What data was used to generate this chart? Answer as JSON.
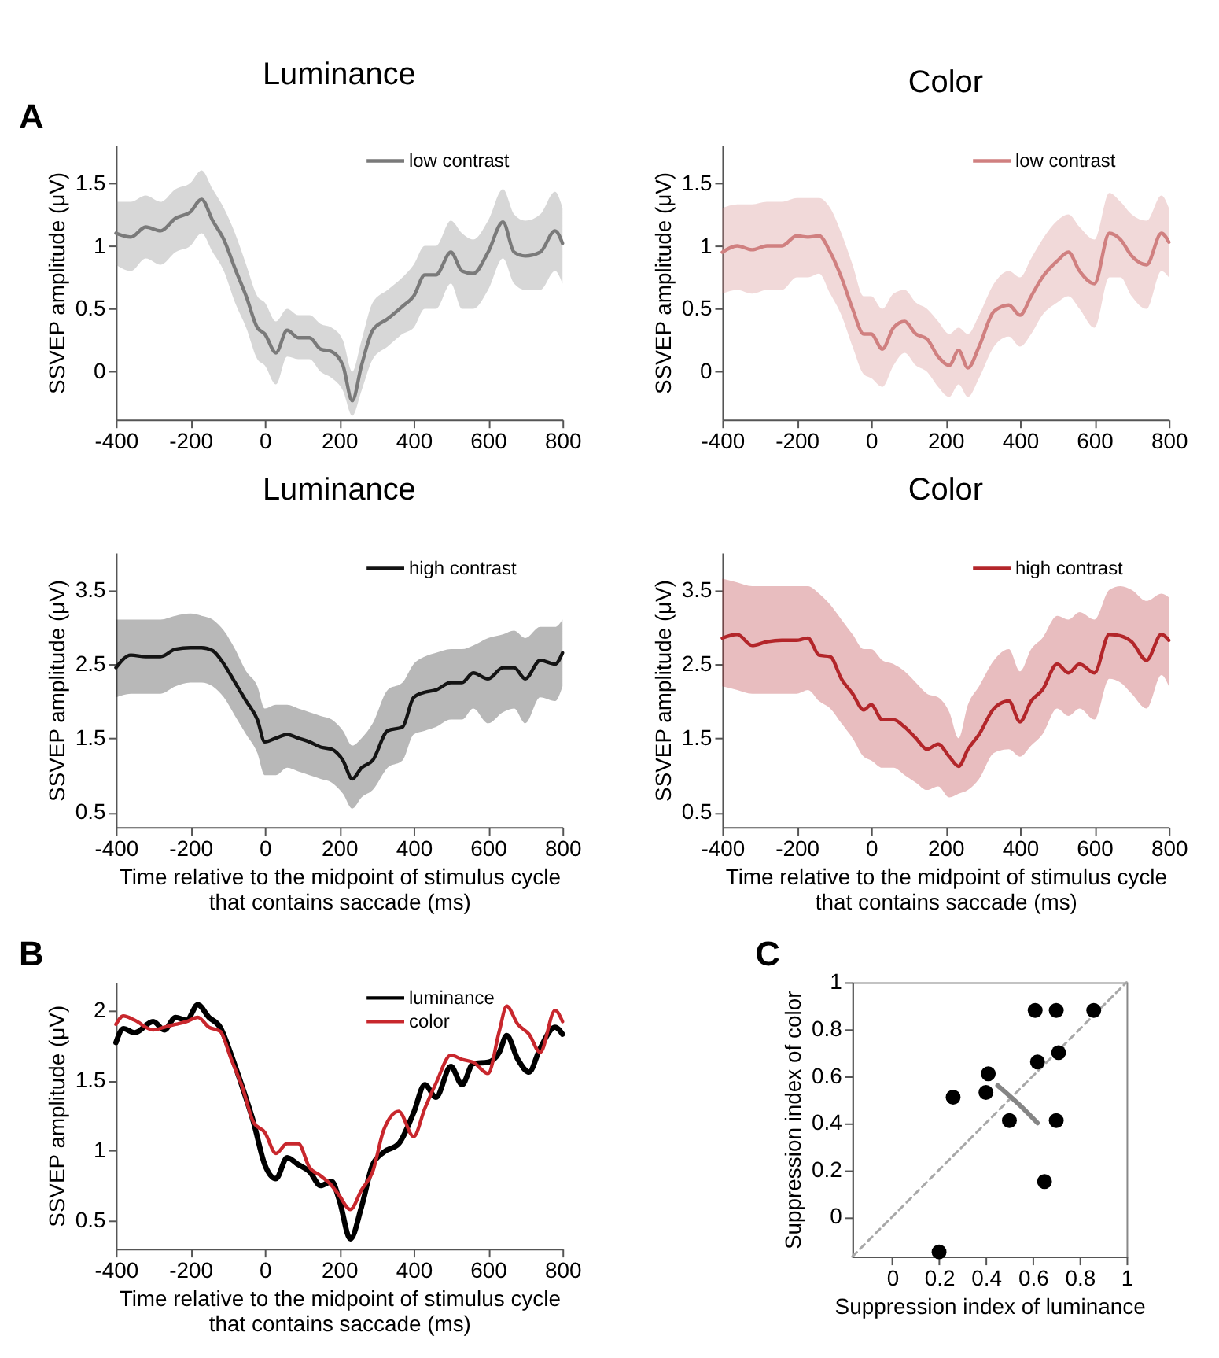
{
  "chart_data": [
    {
      "type": "line",
      "title": "Luminance",
      "ylabel": "SSVEP amplitude (μV)",
      "annotations": [
        "A"
      ],
      "xlim": [
        -400,
        800
      ],
      "ylim": [
        -0.38,
        1.8
      ],
      "xticks": [
        -400,
        -200,
        0,
        200,
        400,
        600,
        800
      ],
      "yticks": [
        0,
        0.5,
        1,
        1.5
      ],
      "grid": false,
      "legend": "top right",
      "x": [
        -400,
        -360,
        -320,
        -280,
        -240,
        -200,
        -170,
        -140,
        -110,
        -80,
        -50,
        -20,
        0,
        30,
        60,
        90,
        120,
        150,
        180,
        210,
        235,
        260,
        290,
        330,
        370,
        400,
        430,
        460,
        500,
        530,
        560,
        600,
        640,
        670,
        700,
        740,
        780,
        800
      ],
      "series": [
        {
          "name": "low contrast",
          "color": "#7a7a7a",
          "values": [
            1.1,
            1.07,
            1.15,
            1.12,
            1.22,
            1.27,
            1.37,
            1.2,
            1.05,
            0.82,
            0.6,
            0.35,
            0.3,
            0.15,
            0.33,
            0.27,
            0.27,
            0.18,
            0.16,
            0.05,
            -0.23,
            0.05,
            0.33,
            0.42,
            0.52,
            0.6,
            0.77,
            0.77,
            0.95,
            0.8,
            0.78,
            0.95,
            1.19,
            0.95,
            0.92,
            0.95,
            1.12,
            1.02
          ],
          "upper": [
            1.35,
            1.35,
            1.4,
            1.35,
            1.45,
            1.5,
            1.6,
            1.45,
            1.3,
            1.1,
            0.85,
            0.6,
            0.55,
            0.4,
            0.5,
            0.45,
            0.45,
            0.38,
            0.35,
            0.25,
            0,
            0.25,
            0.55,
            0.65,
            0.75,
            0.85,
            1.0,
            1.0,
            1.2,
            1.1,
            1.05,
            1.2,
            1.45,
            1.25,
            1.2,
            1.25,
            1.43,
            1.3
          ],
          "lower": [
            0.85,
            0.8,
            0.9,
            0.85,
            0.95,
            1.0,
            1.1,
            0.95,
            0.8,
            0.55,
            0.35,
            0.1,
            0.05,
            -0.1,
            0.12,
            0.1,
            0.1,
            0,
            -0.05,
            -0.15,
            -0.35,
            -0.15,
            0.1,
            0.2,
            0.3,
            0.35,
            0.5,
            0.5,
            0.7,
            0.5,
            0.5,
            0.65,
            0.9,
            0.7,
            0.65,
            0.65,
            0.8,
            0.7
          ]
        }
      ]
    },
    {
      "type": "line",
      "title": "Color",
      "ylabel": "SSVEP amplitude (μV)",
      "xlim": [
        -400,
        800
      ],
      "ylim": [
        -0.38,
        1.8
      ],
      "xticks": [
        -400,
        -200,
        0,
        200,
        400,
        600,
        800
      ],
      "yticks": [
        0,
        0.5,
        1,
        1.5
      ],
      "grid": false,
      "legend": "top right",
      "x": [
        -400,
        -360,
        -320,
        -280,
        -240,
        -200,
        -170,
        -140,
        -110,
        -80,
        -50,
        -20,
        0,
        30,
        60,
        90,
        120,
        150,
        180,
        210,
        235,
        260,
        290,
        330,
        370,
        400,
        430,
        460,
        500,
        530,
        560,
        600,
        640,
        670,
        700,
        740,
        780,
        800
      ],
      "series": [
        {
          "name": "low contrast",
          "color": "#d08080",
          "values": [
            0.95,
            1.0,
            0.97,
            1.0,
            1.0,
            1.08,
            1.07,
            1.08,
            0.95,
            0.75,
            0.5,
            0.3,
            0.3,
            0.18,
            0.35,
            0.4,
            0.3,
            0.26,
            0.12,
            0.05,
            0.17,
            0.03,
            0.2,
            0.48,
            0.53,
            0.45,
            0.6,
            0.75,
            0.88,
            0.95,
            0.8,
            0.7,
            1.1,
            1.05,
            0.92,
            0.85,
            1.1,
            1.03
          ],
          "upper": [
            1.3,
            1.33,
            1.33,
            1.35,
            1.35,
            1.38,
            1.38,
            1.38,
            1.3,
            1.1,
            0.85,
            0.6,
            0.6,
            0.5,
            0.62,
            0.65,
            0.55,
            0.5,
            0.4,
            0.3,
            0.35,
            0.3,
            0.45,
            0.7,
            0.8,
            0.75,
            0.9,
            1.05,
            1.2,
            1.25,
            1.15,
            1.05,
            1.42,
            1.35,
            1.25,
            1.2,
            1.4,
            1.3
          ],
          "lower": [
            0.62,
            0.65,
            0.62,
            0.65,
            0.65,
            0.75,
            0.75,
            0.78,
            0.62,
            0.45,
            0.2,
            -0.02,
            -0.05,
            -0.12,
            0.05,
            0.15,
            0.05,
            0,
            -0.12,
            -0.2,
            -0.1,
            -0.2,
            -0.05,
            0.2,
            0.28,
            0.2,
            0.3,
            0.45,
            0.55,
            0.6,
            0.5,
            0.35,
            0.75,
            0.75,
            0.6,
            0.5,
            0.8,
            0.75
          ]
        }
      ]
    },
    {
      "type": "line",
      "title": "Luminance",
      "xlabel": "Time relative to the midpoint of stimulus cycle that contains saccade (ms)",
      "ylabel": "SSVEP amplitude (μV)",
      "xlim": [
        -400,
        800
      ],
      "ylim": [
        0.3,
        4.0
      ],
      "xticks": [
        -400,
        -200,
        0,
        200,
        400,
        600,
        800
      ],
      "yticks": [
        0.5,
        1.5,
        2.5,
        3.5
      ],
      "grid": false,
      "legend": "top right",
      "x": [
        -400,
        -360,
        -320,
        -280,
        -240,
        -200,
        -170,
        -140,
        -110,
        -80,
        -50,
        -20,
        0,
        30,
        60,
        90,
        120,
        150,
        180,
        210,
        235,
        260,
        290,
        330,
        370,
        400,
        430,
        460,
        500,
        530,
        560,
        600,
        640,
        670,
        700,
        740,
        780,
        800
      ],
      "series": [
        {
          "name": "high contrast",
          "color": "#141414",
          "values": [
            2.45,
            2.62,
            2.6,
            2.6,
            2.7,
            2.72,
            2.72,
            2.68,
            2.5,
            2.25,
            2.0,
            1.75,
            1.45,
            1.5,
            1.55,
            1.5,
            1.45,
            1.38,
            1.35,
            1.2,
            0.95,
            1.1,
            1.2,
            1.6,
            1.65,
            2.05,
            2.12,
            2.15,
            2.25,
            2.25,
            2.38,
            2.3,
            2.45,
            2.45,
            2.3,
            2.55,
            2.5,
            2.65
          ],
          "upper": [
            3.1,
            3.1,
            3.1,
            3.1,
            3.15,
            3.18,
            3.15,
            3.1,
            2.95,
            2.7,
            2.4,
            2.2,
            1.9,
            1.95,
            1.95,
            1.9,
            1.85,
            1.8,
            1.75,
            1.6,
            1.4,
            1.5,
            1.7,
            2.15,
            2.25,
            2.5,
            2.6,
            2.65,
            2.7,
            2.7,
            2.75,
            2.85,
            2.9,
            2.95,
            2.85,
            3.0,
            3.0,
            3.1
          ],
          "lower": [
            2.05,
            2.1,
            2.1,
            2.1,
            2.2,
            2.25,
            2.25,
            2.2,
            2.05,
            1.8,
            1.55,
            1.3,
            1.0,
            1.0,
            1.1,
            1.05,
            1.0,
            0.95,
            0.9,
            0.75,
            0.55,
            0.7,
            0.8,
            1.1,
            1.2,
            1.55,
            1.6,
            1.65,
            1.75,
            1.75,
            1.9,
            1.7,
            1.85,
            1.9,
            1.7,
            2.05,
            2.0,
            2.2
          ]
        }
      ]
    },
    {
      "type": "line",
      "title": "Color",
      "xlabel": "Time relative to the midpoint of stimulus cycle that contains saccade (ms)",
      "ylabel": "SSVEP amplitude (μV)",
      "xlim": [
        -400,
        800
      ],
      "ylim": [
        0.3,
        4.0
      ],
      "xticks": [
        -400,
        -200,
        0,
        200,
        400,
        600,
        800
      ],
      "yticks": [
        0.5,
        1.5,
        2.5,
        3.5
      ],
      "grid": false,
      "legend": "top right",
      "x": [
        -400,
        -360,
        -320,
        -280,
        -240,
        -200,
        -170,
        -140,
        -110,
        -80,
        -50,
        -20,
        0,
        30,
        60,
        90,
        120,
        150,
        180,
        210,
        235,
        260,
        290,
        330,
        370,
        400,
        430,
        460,
        500,
        530,
        560,
        600,
        640,
        670,
        700,
        740,
        780,
        800
      ],
      "series": [
        {
          "name": "high contrast",
          "color": "#b3262a",
          "values": [
            2.85,
            2.9,
            2.75,
            2.8,
            2.82,
            2.82,
            2.85,
            2.62,
            2.6,
            2.3,
            2.1,
            1.88,
            1.95,
            1.75,
            1.75,
            1.65,
            1.5,
            1.35,
            1.42,
            1.25,
            1.12,
            1.35,
            1.55,
            1.9,
            2.0,
            1.72,
            2.0,
            2.15,
            2.5,
            2.38,
            2.5,
            2.38,
            2.9,
            2.88,
            2.8,
            2.55,
            2.9,
            2.82
          ],
          "upper": [
            3.65,
            3.6,
            3.55,
            3.55,
            3.55,
            3.55,
            3.55,
            3.45,
            3.3,
            3.1,
            2.9,
            2.7,
            2.7,
            2.55,
            2.5,
            2.4,
            2.25,
            2.1,
            2.05,
            1.85,
            1.5,
            1.95,
            2.2,
            2.55,
            2.7,
            2.4,
            2.7,
            2.85,
            3.15,
            3.1,
            3.2,
            3.1,
            3.5,
            3.55,
            3.5,
            3.35,
            3.45,
            3.4
          ],
          "lower": [
            2.2,
            2.15,
            2.1,
            2.1,
            2.1,
            2.1,
            2.15,
            2.0,
            1.9,
            1.7,
            1.5,
            1.25,
            1.2,
            1.1,
            1.1,
            1.0,
            0.9,
            0.8,
            0.85,
            0.7,
            0.75,
            0.8,
            0.95,
            1.3,
            1.35,
            1.25,
            1.4,
            1.55,
            1.9,
            1.8,
            1.9,
            1.75,
            2.3,
            2.25,
            2.1,
            1.9,
            2.35,
            2.2
          ]
        }
      ]
    },
    {
      "type": "line",
      "xlabel": "Time relative to the midpoint of stimulus cycle that contains saccade (ms)",
      "ylabel": "SSVEP amplitude (μV)",
      "annotations": [
        "B"
      ],
      "xlim": [
        -400,
        800
      ],
      "ylim": [
        0.3,
        2.2
      ],
      "xticks": [
        -400,
        -200,
        0,
        200,
        400,
        600,
        800
      ],
      "yticks": [
        0.5,
        1,
        1.5,
        2
      ],
      "grid": false,
      "legend": "top right",
      "x": [
        -400,
        -380,
        -350,
        -300,
        -270,
        -240,
        -210,
        -180,
        -150,
        -120,
        -90,
        -60,
        -30,
        0,
        30,
        60,
        90,
        120,
        150,
        180,
        200,
        230,
        260,
        290,
        320,
        360,
        400,
        430,
        460,
        500,
        530,
        560,
        600,
        630,
        650,
        680,
        710,
        740,
        780,
        800
      ],
      "series": [
        {
          "name": "luminance",
          "color": "#000000",
          "values": [
            1.77,
            1.87,
            1.84,
            1.92,
            1.86,
            1.95,
            1.93,
            2.04,
            1.95,
            1.88,
            1.68,
            1.45,
            1.2,
            0.9,
            0.8,
            0.95,
            0.9,
            0.85,
            0.75,
            0.78,
            0.65,
            0.37,
            0.6,
            0.9,
            0.99,
            1.05,
            1.27,
            1.47,
            1.38,
            1.6,
            1.47,
            1.62,
            1.63,
            1.7,
            1.82,
            1.65,
            1.56,
            1.73,
            1.88,
            1.83
          ]
        },
        {
          "name": "color",
          "color": "#c8272d",
          "values": [
            1.9,
            1.96,
            1.93,
            1.86,
            1.88,
            1.9,
            1.92,
            1.95,
            1.88,
            1.85,
            1.65,
            1.45,
            1.2,
            1.13,
            0.98,
            1.05,
            1.05,
            0.88,
            0.82,
            0.75,
            0.68,
            0.58,
            0.72,
            0.85,
            1.15,
            1.28,
            1.1,
            1.3,
            1.48,
            1.68,
            1.65,
            1.63,
            1.55,
            1.85,
            2.03,
            1.9,
            1.83,
            1.7,
            2.0,
            1.92
          ]
        }
      ]
    },
    {
      "type": "scatter",
      "xlabel": "Suppression index of luminance",
      "ylabel": "Suppression index of color",
      "annotations": [
        "C"
      ],
      "xlim": [
        -0.17,
        1
      ],
      "ylim": [
        -0.17,
        1
      ],
      "xticks": [
        0,
        0.2,
        0.4,
        0.6,
        0.8,
        1
      ],
      "yticks": [
        0,
        0.2,
        0.4,
        0.6,
        0.8,
        1
      ],
      "grid": false,
      "series": [
        {
          "type": "line",
          "color": "#a8a8a8",
          "line_style": "dashed",
          "x": [
            -0.17,
            1
          ],
          "values": [
            -0.17,
            1
          ]
        },
        {
          "type": "scatter",
          "marker": "circle",
          "color": "#000000",
          "x": [
            0.61,
            0.7,
            0.86,
            0.71,
            0.62,
            0.41,
            0.4,
            0.26,
            0.5,
            0.7,
            0.65,
            0.2
          ],
          "values": [
            0.88,
            0.88,
            0.88,
            0.7,
            0.66,
            0.61,
            0.53,
            0.51,
            0.41,
            0.41,
            0.15,
            -0.15
          ]
        },
        {
          "type": "line",
          "color": "#858585",
          "x": [
            0.45,
            0.54,
            0.62
          ],
          "values": [
            0.56,
            0.48,
            0.4
          ]
        }
      ]
    }
  ]
}
